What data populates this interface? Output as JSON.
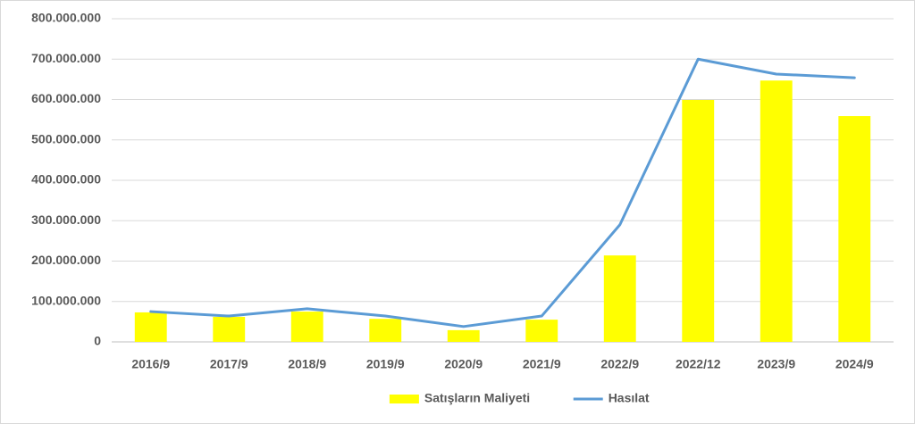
{
  "chart_data": {
    "type": "bar",
    "categories": [
      "2016/9",
      "2017/9",
      "2018/9",
      "2019/9",
      "2020/9",
      "2021/9",
      "2022/9",
      "2022/12",
      "2023/9",
      "2024/9"
    ],
    "series": [
      {
        "name": "Satışların Maliyeti",
        "type": "bar",
        "color": "#ffff00",
        "values": [
          73000000,
          62000000,
          75000000,
          57000000,
          29000000,
          55000000,
          214000000,
          599000000,
          647000000,
          559000000
        ]
      },
      {
        "name": "Hasılat",
        "type": "line",
        "color": "#5b9bd5",
        "values": [
          75000000,
          64000000,
          82000000,
          64000000,
          38000000,
          64000000,
          290000000,
          700000000,
          663000000,
          654000000
        ]
      }
    ],
    "ylim": [
      0,
      800000000
    ],
    "yticks": [
      0,
      {
        "value": 100000000,
        "label": "100.000.000"
      },
      {
        "value": 200000000,
        "label": "200.000.000"
      },
      {
        "value": 300000000,
        "label": "300.000.000"
      },
      {
        "value": 400000000,
        "label": "400.000.000"
      },
      {
        "value": 500000000,
        "label": "500.000.000"
      },
      {
        "value": 600000000,
        "label": "600.000.000"
      },
      {
        "value": 700000000,
        "label": "700.000.000"
      },
      {
        "value": 800000000,
        "label": "800.000.000"
      }
    ],
    "grid": true,
    "legend": "bottom"
  }
}
